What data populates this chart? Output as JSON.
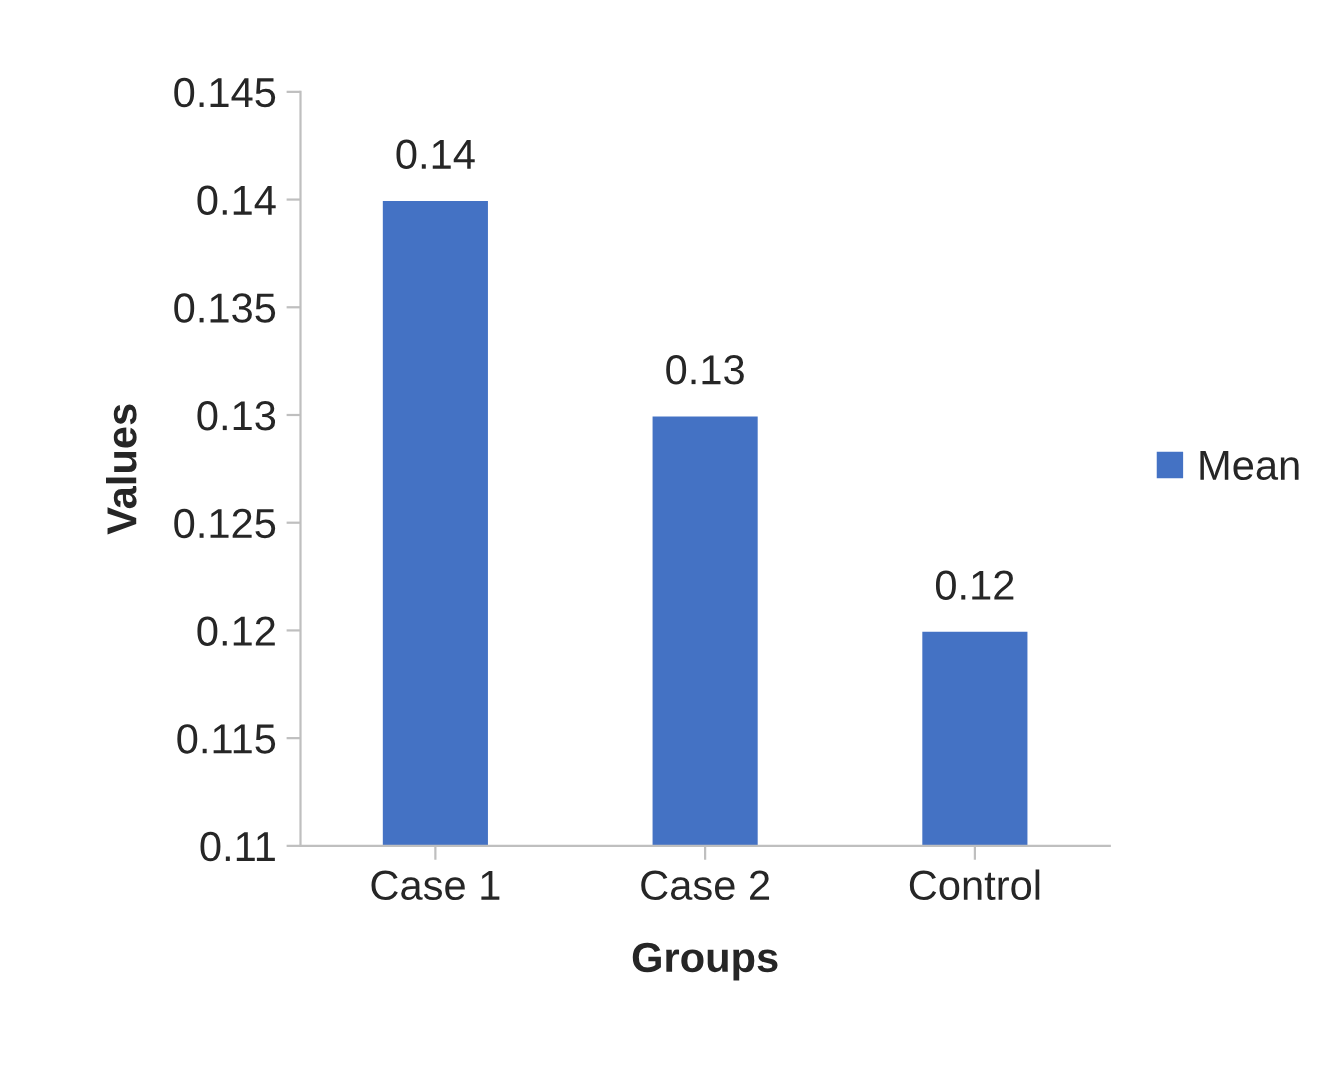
{
  "chart_data": {
    "type": "bar",
    "xlabel": "Groups",
    "ylabel": "Values",
    "categories": [
      "Case 1",
      "Case 2",
      "Control"
    ],
    "series": [
      {
        "name": "Mean",
        "color": "#4472c4",
        "values": [
          0.14,
          0.13,
          0.12
        ]
      }
    ],
    "ylim": [
      0.11,
      0.145
    ],
    "yticks": [
      0.11,
      0.115,
      0.12,
      0.125,
      0.13,
      0.135,
      0.14,
      0.145
    ],
    "data_labels": true,
    "grid": false,
    "legend": "right"
  }
}
